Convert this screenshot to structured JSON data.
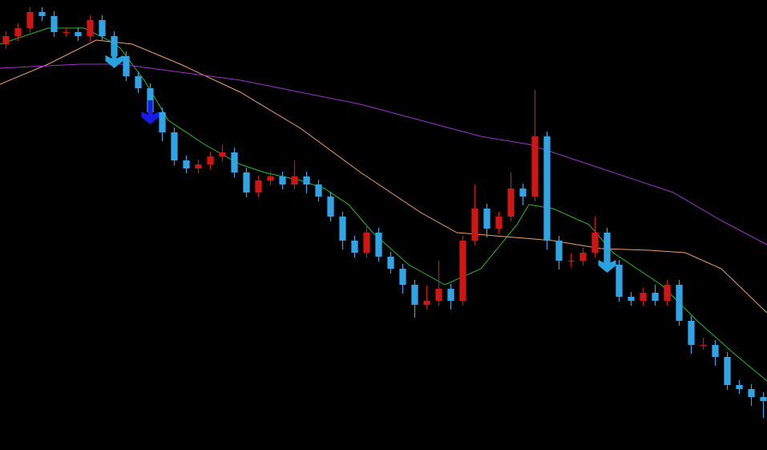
{
  "chart_data": {
    "type": "candlestick",
    "background": "#000000",
    "up_color": "#d01515",
    "down_color": "#2fa4e7",
    "xlim": [
      -0.5,
      63.3
    ],
    "ylim": [
      0,
      561
    ],
    "x": [
      0,
      1,
      2,
      3,
      4,
      5,
      6,
      7,
      8,
      9,
      10,
      11,
      12,
      13,
      14,
      15,
      16,
      17,
      18,
      19,
      20,
      21,
      22,
      23,
      24,
      25,
      26,
      27,
      28,
      29,
      30,
      31,
      32,
      33,
      34,
      35,
      36,
      37,
      38,
      39,
      40,
      41,
      42,
      43,
      44,
      45,
      46,
      47,
      48,
      49,
      50,
      51,
      52,
      53,
      54,
      55,
      56,
      57,
      58,
      59,
      60,
      61,
      62,
      63
    ],
    "open": [
      506,
      516,
      526,
      546,
      541,
      521,
      521,
      516,
      536,
      516,
      491,
      466,
      451,
      421,
      396,
      361,
      351,
      356,
      366,
      371,
      346,
      321,
      336,
      341,
      331,
      341,
      331,
      316,
      291,
      261,
      246,
      271,
      241,
      226,
      206,
      181,
      186,
      201,
      186,
      261,
      301,
      276,
      291,
      326,
      316,
      391,
      261,
      236,
      236,
      246,
      271,
      231,
      191,
      186,
      196,
      186,
      206,
      161,
      131,
      131,
      116,
      81,
      76,
      66
    ],
    "high": [
      522,
      532,
      552,
      552,
      547,
      527,
      527,
      542,
      542,
      522,
      497,
      472,
      457,
      427,
      402,
      367,
      362,
      372,
      381,
      377,
      352,
      342,
      347,
      347,
      361,
      347,
      337,
      322,
      297,
      267,
      281,
      277,
      247,
      232,
      212,
      205,
      236,
      207,
      267,
      331,
      307,
      297,
      346,
      332,
      449,
      397,
      267,
      245,
      252,
      291,
      277,
      237,
      197,
      202,
      206,
      212,
      212,
      167,
      140,
      137,
      122,
      87,
      82,
      72
    ],
    "low": [
      500,
      510,
      520,
      535,
      515,
      515,
      510,
      510,
      510,
      485,
      460,
      445,
      415,
      385,
      355,
      345,
      345,
      350,
      360,
      340,
      315,
      315,
      330,
      325,
      325,
      320,
      310,
      285,
      250,
      240,
      240,
      235,
      220,
      195,
      165,
      175,
      180,
      175,
      180,
      255,
      265,
      270,
      285,
      305,
      310,
      250,
      225,
      228,
      230,
      240,
      225,
      185,
      180,
      180,
      180,
      180,
      155,
      120,
      125,
      105,
      75,
      70,
      55,
      40
    ],
    "close": [
      516,
      526,
      546,
      541,
      521,
      521,
      516,
      536,
      516,
      491,
      466,
      451,
      421,
      396,
      361,
      351,
      356,
      366,
      371,
      346,
      321,
      336,
      341,
      331,
      341,
      331,
      316,
      291,
      261,
      246,
      271,
      241,
      226,
      206,
      181,
      186,
      201,
      186,
      261,
      301,
      276,
      291,
      326,
      316,
      391,
      261,
      236,
      236,
      246,
      271,
      231,
      191,
      186,
      196,
      186,
      206,
      161,
      131,
      131,
      116,
      81,
      76,
      66,
      61
    ],
    "series": [
      {
        "color": "#22c022",
        "x": [
          -0.5,
          3.5,
          6.5,
          8.5,
          9.5,
          11.5,
          13.5,
          16.5,
          19.5,
          21.5,
          24.5,
          26.5,
          28.5,
          30.5,
          33.5,
          36.5,
          39.5,
          42.5,
          43.5,
          45.5,
          48.5,
          50.5,
          52.5,
          54.5,
          57.5,
          60.5,
          63.3
        ],
        "values": [
          506,
          526,
          526,
          511,
          501,
          461,
          411,
          381,
          356,
          346,
          336,
          326,
          306,
          271,
          231,
          206,
          226,
          281,
          306,
          301,
          281,
          246,
          226,
          206,
          161,
          121,
          86
        ]
      },
      {
        "color": "#f0a060",
        "x": [
          -0.5,
          3.5,
          7.5,
          10.5,
          14.5,
          19.5,
          24.5,
          29.5,
          34.5,
          37.5,
          41.5,
          45.5,
          49.5,
          53.5,
          56.5,
          59.5,
          63.3
        ],
        "values": [
          456,
          481,
          511,
          506,
          481,
          446,
          401,
          346,
          296,
          271,
          266,
          261,
          251,
          249,
          246,
          226,
          171
        ]
      },
      {
        "color": "#a030d0",
        "x": [
          -0.5,
          6.2,
          9.5,
          14.5,
          19.5,
          24.5,
          29.5,
          34.5,
          39.5,
          43.5,
          49.5,
          55.5,
          59.5,
          63.3
        ],
        "values": [
          476,
          481,
          481,
          471,
          461,
          446,
          431,
          411,
          391,
          381,
          351,
          321,
          286,
          256
        ]
      }
    ],
    "signals": [
      {
        "x": 9,
        "value": 476,
        "color": "#29a3e0"
      },
      {
        "x": 12,
        "value": 406,
        "color": "#1a1ae6"
      },
      {
        "x": 50,
        "value": 221,
        "color": "#29a3e0"
      }
    ]
  }
}
